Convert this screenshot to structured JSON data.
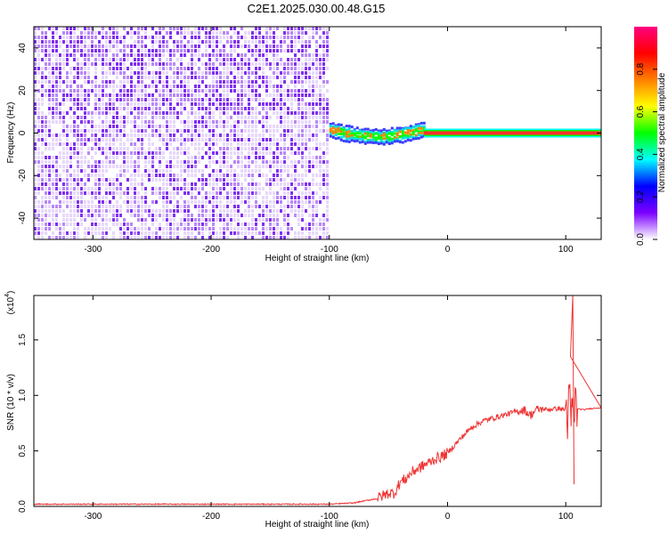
{
  "figure": {
    "title": "C2E1.2025.030.00.48.G15"
  },
  "chart_data": [
    {
      "type": "heatmap",
      "name": "spectrogram",
      "title": "C2E1.2025.030.00.48.G15",
      "xlabel": "Height of straight line (km)",
      "ylabel": "Frequency (Hz)",
      "xlim": [
        -350,
        130
      ],
      "ylim": [
        -50,
        50
      ],
      "xticks": [
        -300,
        -200,
        -100,
        0,
        100
      ],
      "yticks": [
        -40,
        -20,
        0,
        20,
        40
      ],
      "grid": false,
      "colorbar": {
        "label": "Normalized spectral amplitude",
        "range": [
          0,
          1
        ],
        "ticks": [
          0.0,
          0.2,
          0.4,
          0.6,
          0.8
        ],
        "tick_labels": [
          "0.0",
          "0.2",
          "0.4",
          "0.6",
          "0.8"
        ],
        "colormap": [
          "#ffffff",
          "#7b00ff",
          "#0000ff",
          "#00ffff",
          "#00ff00",
          "#ffff00",
          "#ff8000",
          "#ff0000",
          "#ff0080"
        ]
      },
      "regions": [
        {
          "description": "broadband noise",
          "x": [
            -350,
            -100
          ],
          "frequency": [
            -50,
            50
          ],
          "amplitude": [
            0.0,
            0.15
          ],
          "color": "#8a2be2"
        },
        {
          "description": "signal emergence",
          "x": [
            -100,
            -20
          ],
          "frequency": [
            -4,
            5
          ],
          "amplitude": [
            0.2,
            0.8
          ]
        },
        {
          "description": "tone at 0 Hz",
          "x": [
            -20,
            130
          ],
          "frequency": [
            0,
            0
          ],
          "amplitude": [
            0.9,
            1.0
          ]
        }
      ]
    },
    {
      "type": "line",
      "name": "snr",
      "xlabel": "Height of straight line (km)",
      "ylabel": "SNR (10 * v/v)",
      "yscale_label": "(x10",
      "yscale_exp": "4",
      "xlim": [
        -350,
        130
      ],
      "ylim": [
        0,
        1.9
      ],
      "xticks": [
        -300,
        -200,
        -100,
        0,
        100
      ],
      "yticks": [
        0.0,
        0.5,
        1.0,
        1.5
      ],
      "ytick_labels": [
        "0.0",
        "0.5",
        "1.0",
        "1.5"
      ],
      "grid": false,
      "color": "#ee3333",
      "x": [
        -350,
        -300,
        -250,
        -200,
        -150,
        -100,
        -80,
        -70,
        -60,
        -50,
        -45,
        -40,
        -35,
        -30,
        -25,
        -20,
        -15,
        -10,
        -5,
        0,
        10,
        20,
        30,
        40,
        50,
        60,
        65,
        70,
        75,
        80,
        85,
        90,
        95,
        100,
        103,
        106,
        108,
        110,
        115,
        120,
        130
      ],
      "values": [
        0.02,
        0.02,
        0.02,
        0.02,
        0.02,
        0.02,
        0.03,
        0.05,
        0.07,
        0.12,
        0.12,
        0.22,
        0.25,
        0.31,
        0.34,
        0.37,
        0.4,
        0.43,
        0.45,
        0.48,
        0.6,
        0.71,
        0.77,
        0.8,
        0.83,
        0.86,
        0.87,
        0.82,
        0.87,
        0.88,
        0.87,
        0.88,
        0.88,
        0.87,
        0.85,
        0.78,
        0.88,
        0.88,
        0.87,
        0.88,
        0.89
      ]
    }
  ]
}
